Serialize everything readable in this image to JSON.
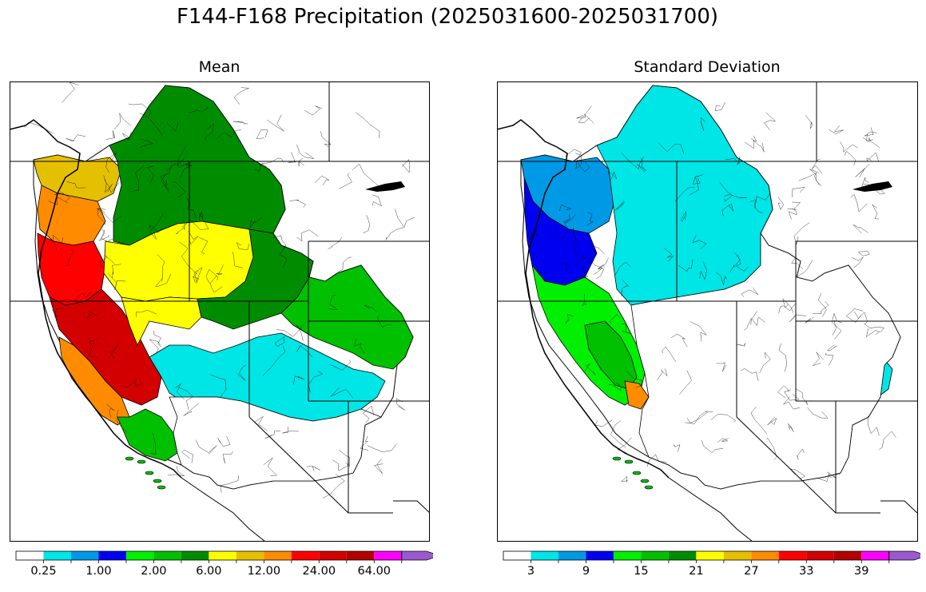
{
  "figure": {
    "title": "F144-F168 Precipitation (2025031600-2025031700)"
  },
  "panels": [
    {
      "title": "Mean",
      "colorbar": {
        "colors": [
          "#ffffff",
          "#00e5e5",
          "#0099e5",
          "#0000f0",
          "#00f000",
          "#00c000",
          "#008c00",
          "#ffff00",
          "#e5c000",
          "#ff8c00",
          "#ff0000",
          "#d20000",
          "#b40000",
          "#ff00ff",
          "#9b59d0"
        ],
        "tick_labels": [
          "0.25",
          "1.00",
          "2.00",
          "6.00",
          "12.00",
          "24.00",
          "64.00"
        ],
        "extend": "max"
      },
      "regions": [
        {
          "name": "pacific-northwest-coast",
          "color": "#e5c000"
        },
        {
          "name": "oregon-coast",
          "color": "#ff8c00"
        },
        {
          "name": "northern-california-coast",
          "color": "#ff0000"
        },
        {
          "name": "sierra-nevada",
          "color": "#d20000"
        },
        {
          "name": "central-california-coast",
          "color": "#ff8c00"
        },
        {
          "name": "southern-california",
          "color": "#00c000"
        },
        {
          "name": "idaho-montana",
          "color": "#008c00"
        },
        {
          "name": "snake-river-plain",
          "color": "#ffff00"
        },
        {
          "name": "great-basin-north",
          "color": "#ffff00"
        },
        {
          "name": "utah-wyoming",
          "color": "#008c00"
        },
        {
          "name": "colorado",
          "color": "#00c000"
        },
        {
          "name": "arizona-nevada",
          "color": "#00e5e5"
        },
        {
          "name": "southwest-desert",
          "color": "#ffffff"
        }
      ]
    },
    {
      "title": "Standard Deviation",
      "colorbar": {
        "colors": [
          "#ffffff",
          "#00e5e5",
          "#0099e5",
          "#0000f0",
          "#00f000",
          "#00c000",
          "#008c00",
          "#ffff00",
          "#e5c000",
          "#ff8c00",
          "#ff0000",
          "#d20000",
          "#b40000",
          "#ff00ff",
          "#9b59d0"
        ],
        "tick_labels": [
          "3",
          "9",
          "15",
          "21",
          "27",
          "33",
          "39"
        ],
        "extend": "max"
      },
      "regions": [
        {
          "name": "pacific-northwest-coast",
          "color": "#0099e5"
        },
        {
          "name": "oregon-washington-coast",
          "color": "#0000f0"
        },
        {
          "name": "northern-california",
          "color": "#00f000"
        },
        {
          "name": "sierra-nevada",
          "color": "#00c000"
        },
        {
          "name": "sierra-peak",
          "color": "#ff8c00"
        },
        {
          "name": "idaho-montana",
          "color": "#00e5e5"
        },
        {
          "name": "colorado",
          "color": "#00e5e5"
        },
        {
          "name": "southwest-desert",
          "color": "#ffffff"
        }
      ]
    }
  ]
}
